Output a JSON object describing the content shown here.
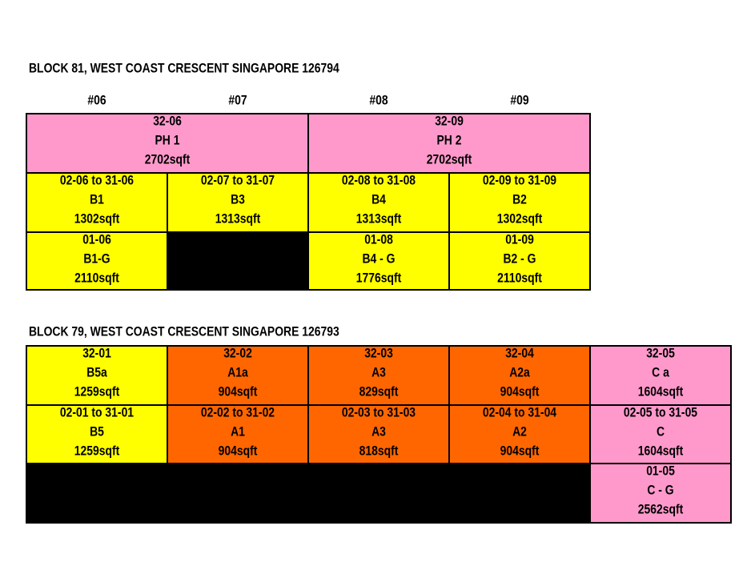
{
  "blocks": [
    {
      "title": "BLOCK 81, WEST COAST CRESCENT SINGAPORE 126794",
      "headers": [
        "#06",
        "#07",
        "#08",
        "#09"
      ],
      "cells": [
        [
          "32-06",
          "PH 1",
          "2702sqft"
        ],
        [
          "32-09",
          "PH 2",
          "2702sqft"
        ],
        [
          "02-06 to 31-06",
          "B1",
          "1302sqft"
        ],
        [
          "02-07 to 31-07",
          "B3",
          "1313sqft"
        ],
        [
          "02-08 to 31-08",
          "B4",
          "1313sqft"
        ],
        [
          "02-09 to 31-09",
          "B2",
          "1302sqft"
        ],
        [
          "01-06",
          "B1-G",
          "2110sqft"
        ],
        [
          "01-08",
          "B4 - G",
          "1776sqft"
        ],
        [
          "01-09",
          "B2 - G",
          "2110sqft"
        ]
      ]
    },
    {
      "title": "BLOCK 79, WEST COAST CRESCENT SINGAPORE 126793",
      "cells": [
        [
          "32-01",
          "B5a",
          "1259sqft"
        ],
        [
          "32-02",
          "A1a",
          "904sqft"
        ],
        [
          "32-03",
          "A3",
          "829sqft"
        ],
        [
          "32-04",
          "A2a",
          "904sqft"
        ],
        [
          "32-05",
          "C a",
          "1604sqft"
        ],
        [
          "02-01 to 31-01",
          "B5",
          "1259sqft"
        ],
        [
          "02-02 to 31-02",
          "A1",
          "904sqft"
        ],
        [
          "02-03 to 31-03",
          "A3",
          "818sqft"
        ],
        [
          "02-04 to 31-04",
          "A2",
          "904sqft"
        ],
        [
          "02-05 to 31-05",
          "C",
          "1604sqft"
        ],
        [
          "01-05",
          "C - G",
          "2562sqft"
        ]
      ]
    }
  ]
}
